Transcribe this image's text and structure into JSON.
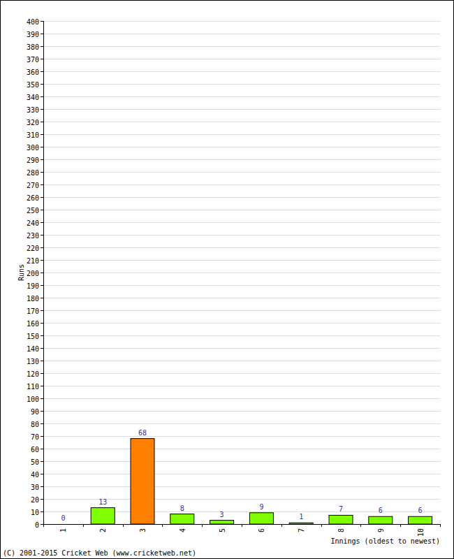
{
  "chart_data": {
    "type": "bar",
    "categories": [
      "1",
      "2",
      "3",
      "4",
      "5",
      "6",
      "7",
      "8",
      "9",
      "10"
    ],
    "values": [
      0,
      13,
      68,
      8,
      3,
      9,
      1,
      7,
      6,
      6
    ],
    "colors": [
      "#80ff00",
      "#80ff00",
      "#ff8000",
      "#80ff00",
      "#80ff00",
      "#80ff00",
      "#80ff00",
      "#80ff00",
      "#80ff00",
      "#80ff00"
    ],
    "ylim": [
      0,
      400
    ],
    "yticks": [
      0,
      10,
      20,
      30,
      40,
      50,
      60,
      70,
      80,
      90,
      100,
      110,
      120,
      130,
      140,
      150,
      160,
      170,
      180,
      190,
      200,
      210,
      220,
      230,
      240,
      250,
      260,
      270,
      280,
      290,
      300,
      310,
      320,
      330,
      340,
      350,
      360,
      370,
      380,
      390,
      400
    ],
    "grid": true,
    "data_labels": true,
    "y_label": "Runs",
    "x_label": "Innings (oldest to newest)",
    "annotations": [
      "(C) 2001-2015 Cricket Web (www.cricketweb.net)"
    ]
  }
}
